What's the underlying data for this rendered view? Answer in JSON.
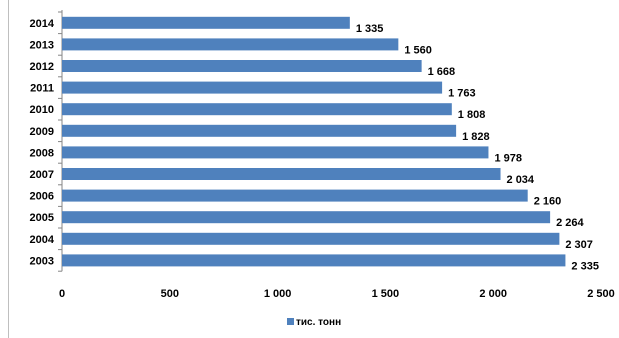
{
  "chart_data": {
    "type": "bar",
    "orientation": "horizontal",
    "categories": [
      "2014",
      "2013",
      "2012",
      "2011",
      "2010",
      "2009",
      "2008",
      "2007",
      "2006",
      "2005",
      "2004",
      "2003"
    ],
    "series": [
      {
        "name": "тис. тонн",
        "values": [
          1335,
          1560,
          1668,
          1763,
          1808,
          1828,
          1978,
          2034,
          2160,
          2264,
          2307,
          2335
        ],
        "labels": [
          "1 335",
          "1 560",
          "1 668",
          "1 763",
          "1 808",
          "1 828",
          "1 978",
          "2 034",
          "2 160",
          "2 264",
          "2 307",
          "2 335"
        ]
      }
    ],
    "xlim": [
      0,
      2500
    ],
    "xticks": [
      0,
      500,
      1000,
      1500,
      2000,
      2500
    ],
    "xtick_labels": [
      "0",
      "500",
      "1 000",
      "1 500",
      "2 000",
      "2 500"
    ],
    "grid": false,
    "legend_position": "bottom",
    "bar_color": "#4f81bd"
  }
}
